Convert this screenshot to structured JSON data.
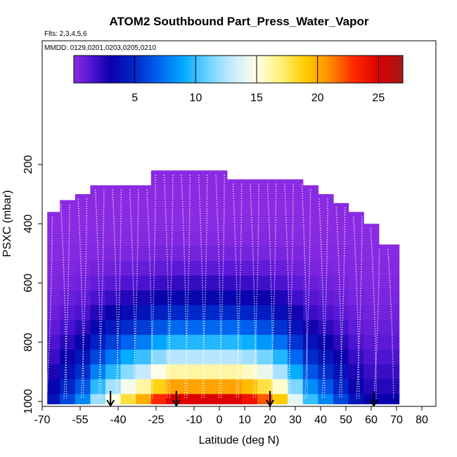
{
  "chart_data": {
    "type": "heatmap",
    "title": "ATOM2 Southbound Part_Press_Water_Vapor",
    "flights_note": "Flts: 2,3,4,5,6",
    "dates_note": "MMDD: 0129,0201,0203,0205,0210",
    "xlabel": "Latitude (deg N)",
    "ylabel": "PSXC (mbar)",
    "xlim": [
      -70,
      85
    ],
    "ylim": [
      1000,
      10
    ],
    "x_ticks": [
      -70,
      -55,
      -40,
      -25,
      -10,
      0,
      10,
      20,
      30,
      40,
      50,
      60,
      70,
      80
    ],
    "x_tick_labels": [
      "-70",
      "-55",
      "-40",
      "-25",
      "-10",
      "0",
      "10",
      "20",
      "30",
      "40",
      "50",
      "60",
      "70",
      "80"
    ],
    "y_ticks": [
      200,
      400,
      600,
      800,
      1000
    ],
    "y_tick_labels": [
      "200",
      "400",
      "600",
      "800",
      "1000"
    ],
    "colorbar": {
      "min": 0,
      "max": 27,
      "ticks": [
        5,
        10,
        15,
        20,
        25
      ],
      "tick_labels": [
        "5",
        "10",
        "15",
        "20",
        "25"
      ]
    },
    "latitude_bins": [
      -66,
      -60,
      -54,
      -48,
      -42,
      -36,
      -30,
      -24,
      -18,
      -12,
      -6,
      0,
      6,
      12,
      18,
      24,
      30,
      36,
      42,
      48,
      54,
      60,
      66,
      70
    ],
    "pressure_bins": [
      200,
      250,
      300,
      350,
      400,
      450,
      500,
      550,
      600,
      650,
      700,
      750,
      800,
      850,
      900,
      950,
      1000
    ],
    "top_pressure": [
      360,
      320,
      300,
      270,
      270,
      270,
      270,
      220,
      220,
      220,
      220,
      220,
      250,
      250,
      250,
      250,
      250,
      270,
      300,
      330,
      360,
      400,
      470,
      470
    ],
    "bottom_pressure": [
      1000,
      1000,
      1000,
      1000,
      1000,
      1000,
      1000,
      1000,
      1000,
      1000,
      1000,
      1000,
      1000,
      1000,
      1000,
      1000,
      1000,
      1000,
      1000,
      1000,
      1000,
      1000,
      1000,
      1000
    ],
    "surface_profile": [
      4,
      6,
      8,
      12,
      15,
      18,
      20,
      23,
      25,
      25,
      25,
      25,
      25,
      24,
      22,
      19,
      14,
      10,
      8,
      6,
      4,
      3,
      3,
      3
    ],
    "flight_markers_lat": [
      -43,
      -17,
      20,
      61
    ]
  }
}
